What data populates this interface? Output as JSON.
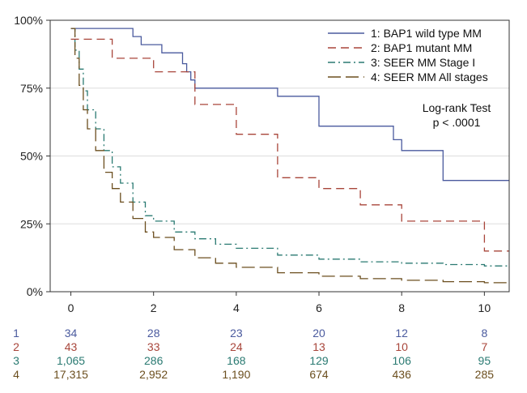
{
  "chart_data": {
    "type": "line",
    "subtype": "kaplan-meier step",
    "xlim": [
      -0.5,
      10.6
    ],
    "ylim": [
      0,
      100
    ],
    "x_ticks": [
      "0",
      "2",
      "4",
      "6",
      "8",
      "10"
    ],
    "y_ticks": [
      "0%",
      "25%",
      "50%",
      "75%",
      "100%"
    ],
    "grid": true,
    "legend_position": "top-right",
    "annotation": [
      "Log-rank Test",
      "p < .0001"
    ],
    "series": [
      {
        "name": "1: BAP1 wild type MM",
        "color": "#4a5a9e",
        "dash": "solid",
        "points": [
          [
            0,
            97
          ],
          [
            1,
            97
          ],
          [
            1.5,
            94
          ],
          [
            1.7,
            91
          ],
          [
            2.2,
            88
          ],
          [
            2.6,
            88
          ],
          [
            2.7,
            84
          ],
          [
            2.8,
            81
          ],
          [
            2.9,
            78
          ],
          [
            3.0,
            75
          ],
          [
            5.0,
            75
          ],
          [
            5.0,
            72
          ],
          [
            6.0,
            72
          ],
          [
            6.0,
            61
          ],
          [
            7.8,
            61
          ],
          [
            7.8,
            56
          ],
          [
            8.0,
            56
          ],
          [
            8.0,
            52
          ],
          [
            9.0,
            52
          ],
          [
            9.0,
            41
          ],
          [
            10.6,
            41
          ]
        ]
      },
      {
        "name": "2: BAP1 mutant MM",
        "color": "#a8453a",
        "dash": "long",
        "points": [
          [
            0,
            93
          ],
          [
            1.0,
            93
          ],
          [
            1.0,
            86
          ],
          [
            2.0,
            86
          ],
          [
            2.0,
            81
          ],
          [
            3.0,
            81
          ],
          [
            3.0,
            69
          ],
          [
            4.0,
            69
          ],
          [
            4.0,
            58
          ],
          [
            5.0,
            58
          ],
          [
            5.0,
            42
          ],
          [
            6.0,
            42
          ],
          [
            6.0,
            38
          ],
          [
            7.0,
            38
          ],
          [
            7.0,
            32
          ],
          [
            8.0,
            32
          ],
          [
            8.0,
            26
          ],
          [
            10.0,
            26
          ],
          [
            10.0,
            15
          ],
          [
            10.6,
            15
          ]
        ]
      },
      {
        "name": "3: SEER MM Stage I",
        "color": "#2a7a72",
        "dash": "dashdot",
        "points": [
          [
            0,
            97
          ],
          [
            0.1,
            89
          ],
          [
            0.2,
            82
          ],
          [
            0.3,
            74
          ],
          [
            0.4,
            67
          ],
          [
            0.6,
            60
          ],
          [
            0.8,
            52
          ],
          [
            1.0,
            46
          ],
          [
            1.2,
            40
          ],
          [
            1.5,
            33
          ],
          [
            1.8,
            28
          ],
          [
            2.0,
            26
          ],
          [
            2.5,
            22
          ],
          [
            3.0,
            19.5
          ],
          [
            3.5,
            17.5
          ],
          [
            4.0,
            16
          ],
          [
            5.0,
            13.5
          ],
          [
            6.0,
            12
          ],
          [
            7.0,
            11
          ],
          [
            8.0,
            10.5
          ],
          [
            9.0,
            10
          ],
          [
            10.0,
            9.5
          ],
          [
            10.6,
            9
          ]
        ]
      },
      {
        "name": "4: SEER MM All stages",
        "color": "#6b4e1e",
        "dash": "longdash",
        "points": [
          [
            0,
            97
          ],
          [
            0.1,
            86
          ],
          [
            0.2,
            76
          ],
          [
            0.3,
            67
          ],
          [
            0.4,
            60
          ],
          [
            0.6,
            52
          ],
          [
            0.8,
            44
          ],
          [
            1.0,
            38
          ],
          [
            1.2,
            33
          ],
          [
            1.5,
            27
          ],
          [
            1.8,
            22
          ],
          [
            2.0,
            20
          ],
          [
            2.5,
            15.5
          ],
          [
            3.0,
            12.5
          ],
          [
            3.5,
            10.5
          ],
          [
            4.0,
            9
          ],
          [
            5.0,
            7
          ],
          [
            6.0,
            5.7
          ],
          [
            7.0,
            4.8
          ],
          [
            8.0,
            4.2
          ],
          [
            9.0,
            3.7
          ],
          [
            10.0,
            3.3
          ],
          [
            10.6,
            3.2
          ]
        ]
      }
    ],
    "risk_table": [
      {
        "label": "1",
        "color": "#4a5a9e",
        "values": [
          "34",
          "28",
          "23",
          "20",
          "12",
          "8"
        ]
      },
      {
        "label": "2",
        "color": "#a8453a",
        "values": [
          "43",
          "33",
          "24",
          "13",
          "10",
          "7"
        ]
      },
      {
        "label": "3",
        "color": "#2a7a72",
        "values": [
          "1,065",
          "286",
          "168",
          "129",
          "106",
          "95"
        ]
      },
      {
        "label": "4",
        "color": "#6b4e1e",
        "values": [
          "17,315",
          "2,952",
          "1,190",
          "674",
          "436",
          "285"
        ]
      }
    ]
  }
}
